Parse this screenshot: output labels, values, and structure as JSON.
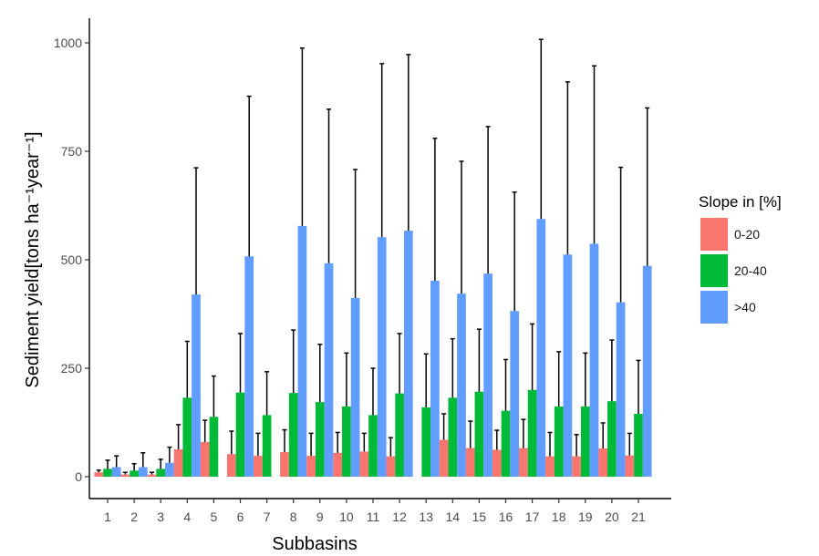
{
  "chart_data": {
    "type": "bar",
    "xlabel": "Subbasins",
    "ylabel": "Sediment yield[tons ha⁻¹year⁻¹]",
    "ylim": [
      0,
      1000
    ],
    "yticks": [
      0,
      250,
      500,
      750,
      1000
    ],
    "grid": false,
    "legend_position": "right",
    "legend_title": "Slope in [%]",
    "categories": [
      "1",
      "2",
      "3",
      "4",
      "5",
      "6",
      "7",
      "8",
      "9",
      "10",
      "11",
      "12",
      "13",
      "14",
      "15",
      "16",
      "17",
      "18",
      "19",
      "20",
      "21"
    ],
    "series": [
      {
        "name": "0-20",
        "color": "#f8766d",
        "values": [
          10,
          5,
          5,
          63,
          80,
          52,
          48,
          57,
          48,
          55,
          58,
          47,
          0,
          85,
          66,
          62,
          66,
          47,
          47,
          65,
          49
        ],
        "error_upper": [
          15,
          10,
          10,
          120,
          130,
          105,
          100,
          108,
          100,
          102,
          100,
          90,
          0,
          145,
          128,
          107,
          132,
          102,
          97,
          124,
          100
        ]
      },
      {
        "name": "20-40",
        "color": "#00ba38",
        "values": [
          18,
          14,
          18,
          182,
          138,
          194,
          142,
          193,
          172,
          162,
          142,
          192,
          160,
          182,
          196,
          152,
          200,
          162,
          162,
          174,
          145
        ],
        "error_upper": [
          38,
          30,
          40,
          312,
          232,
          330,
          242,
          338,
          305,
          285,
          250,
          330,
          283,
          318,
          340,
          270,
          352,
          288,
          285,
          315,
          268
        ]
      },
      {
        "name": ">40",
        "color": "#619cff",
        "values": [
          22,
          22,
          32,
          420,
          0,
          508,
          0,
          578,
          492,
          412,
          552,
          567,
          452,
          422,
          468,
          382,
          594,
          512,
          537,
          402,
          486
        ],
        "error_upper": [
          48,
          55,
          68,
          712,
          0,
          877,
          0,
          988,
          847,
          708,
          952,
          973,
          780,
          727,
          807,
          656,
          1008,
          910,
          947,
          713,
          850
        ]
      }
    ]
  }
}
